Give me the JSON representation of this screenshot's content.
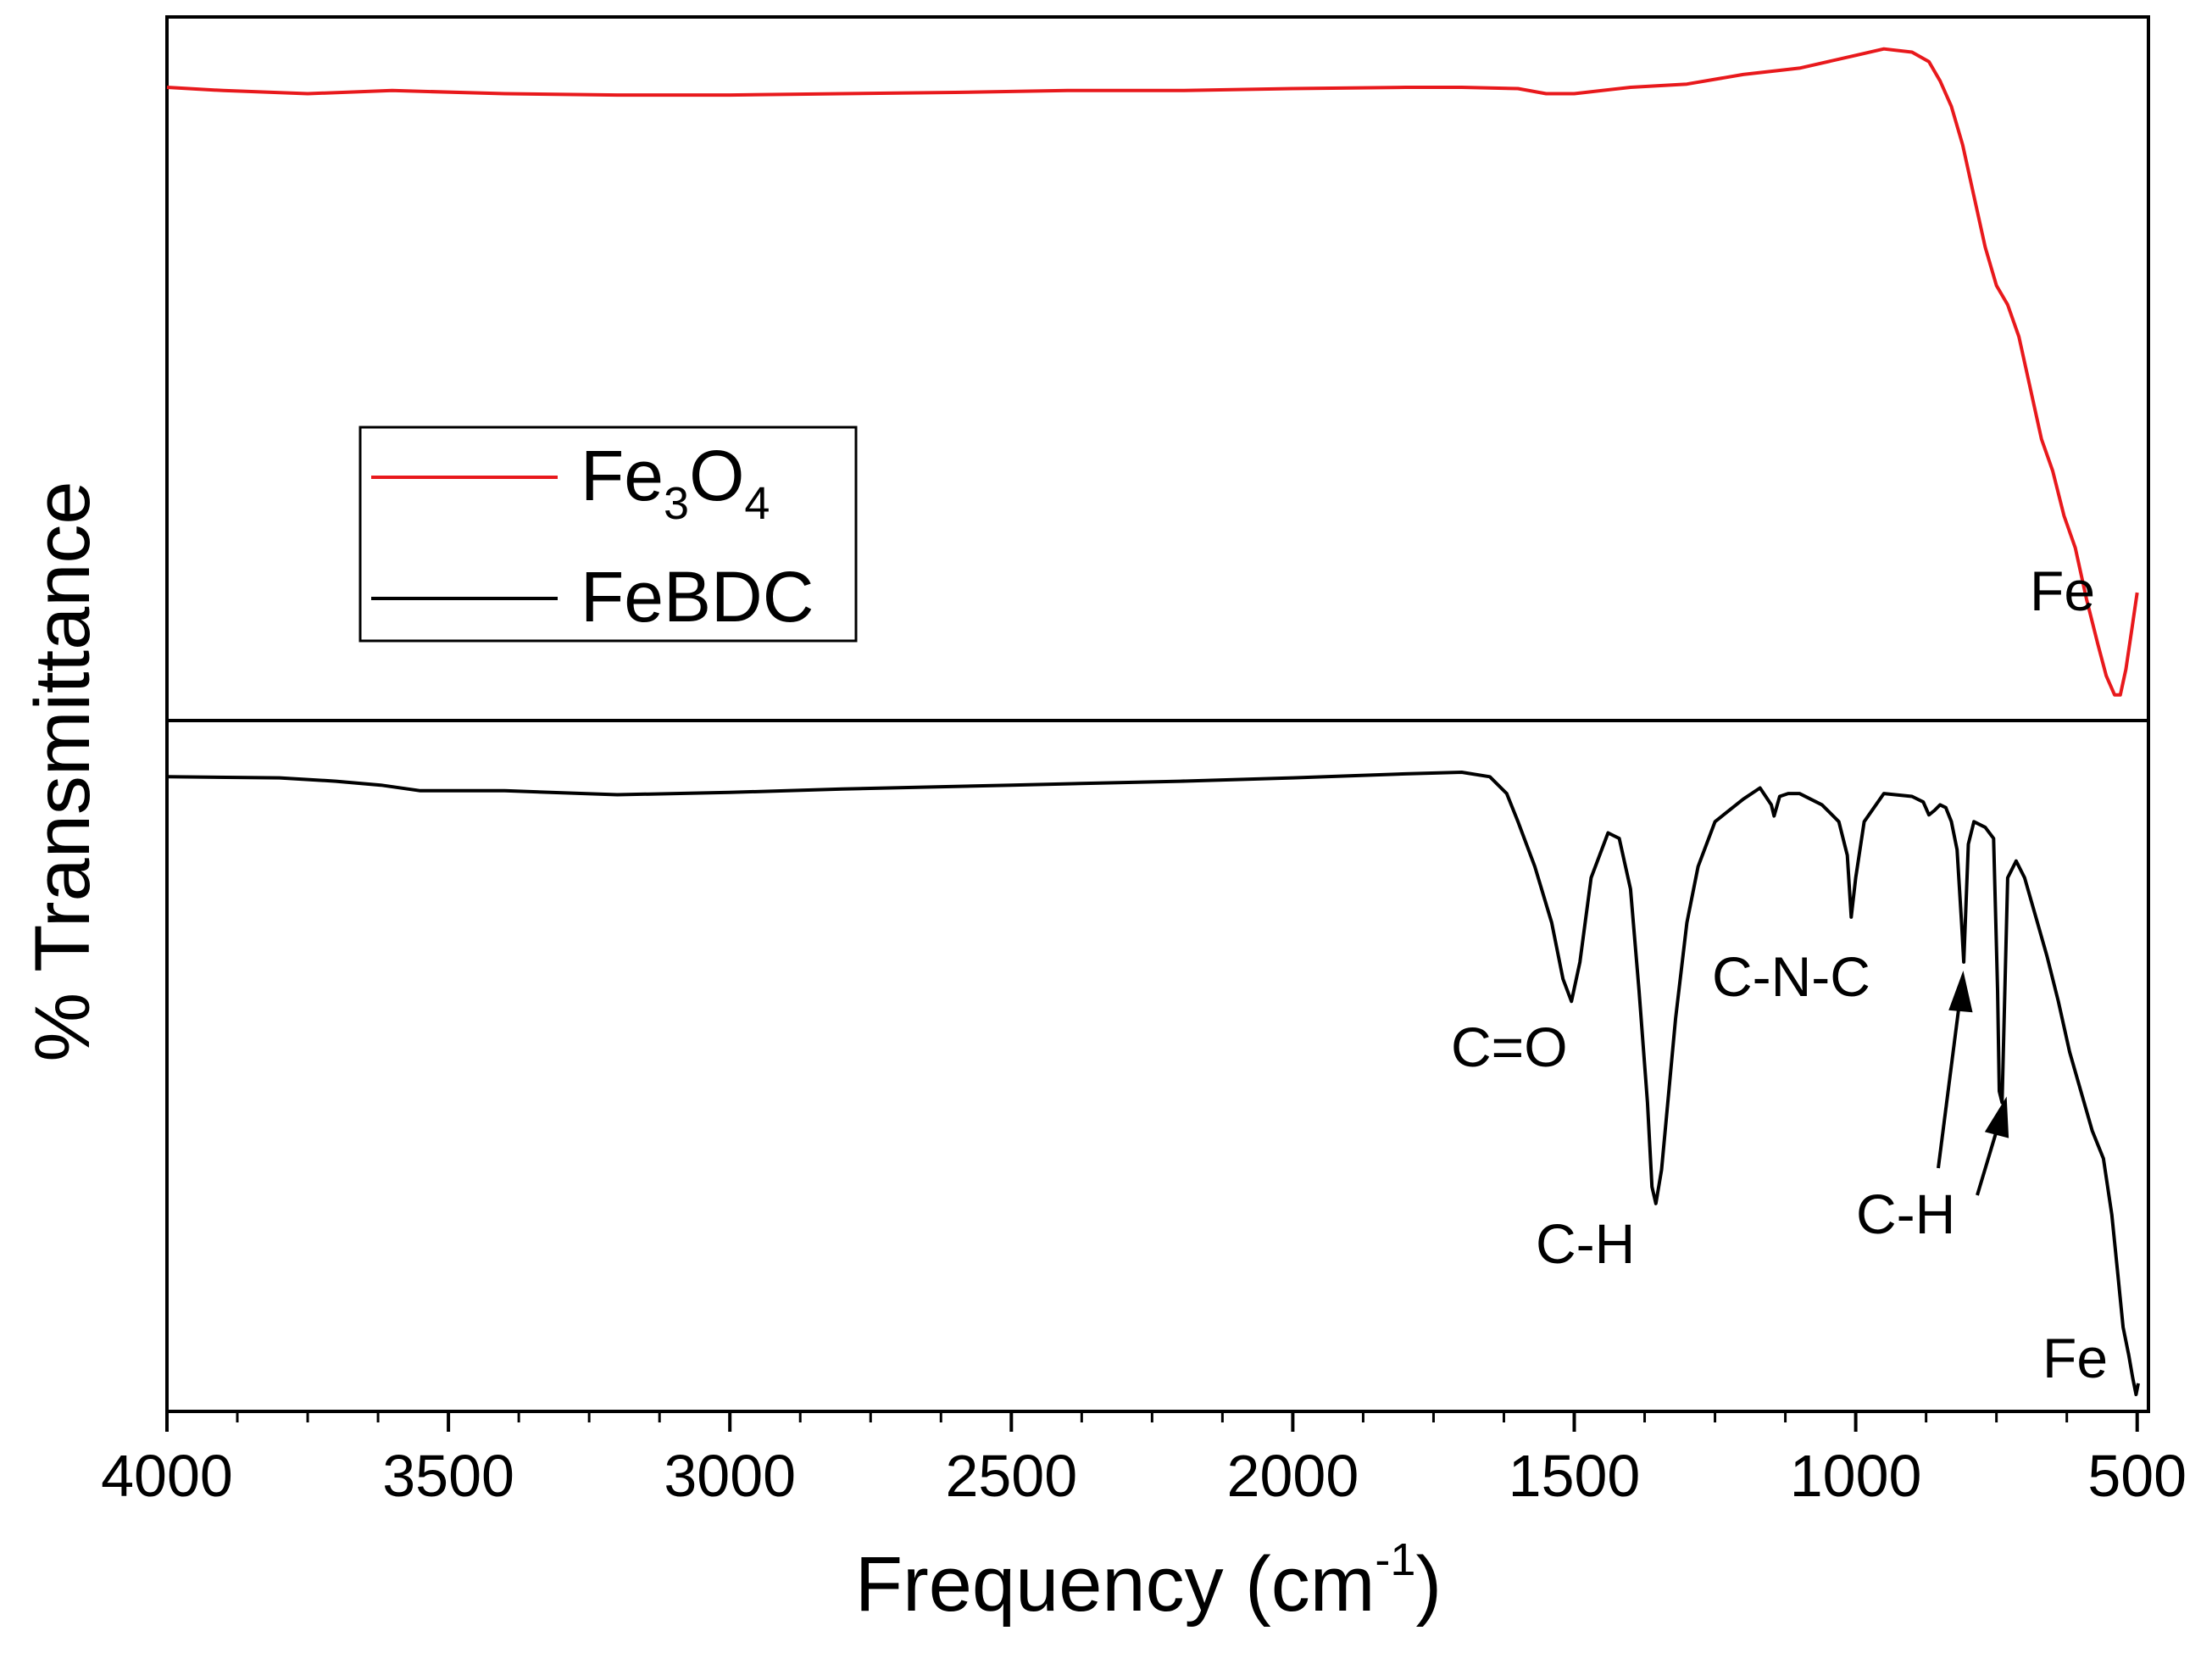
{
  "chart_data": {
    "type": "line",
    "title": "",
    "xlabel": "Frequency (cm",
    "xlabel_sup": "-1",
    "xlabel_close": ")",
    "ylabel": "% Transmittance",
    "xlim": [
      4000,
      480
    ],
    "xticks": [
      "4000",
      "3500",
      "3000",
      "2500",
      "2000",
      "1500",
      "1000",
      "500"
    ],
    "panels": [
      {
        "name": "top",
        "series": {
          "name": "Fe3O4",
          "color": "#e8191c",
          "x": [
            4000,
            3900,
            3750,
            3600,
            3400,
            3200,
            3000,
            2800,
            2600,
            2400,
            2200,
            2000,
            1800,
            1700,
            1600,
            1550,
            1500,
            1400,
            1300,
            1200,
            1100,
            1000,
            950,
            900,
            870,
            850,
            830,
            810,
            790,
            770,
            750,
            730,
            710,
            690,
            670,
            650,
            630,
            610,
            590,
            570,
            555,
            540,
            530,
            520,
            510,
            500
          ],
          "y": [
            0.97,
            0.965,
            0.96,
            0.965,
            0.96,
            0.958,
            0.958,
            0.96,
            0.962,
            0.965,
            0.965,
            0.968,
            0.97,
            0.97,
            0.968,
            0.96,
            0.96,
            0.97,
            0.975,
            0.99,
            1.0,
            1.02,
            1.03,
            1.025,
            1.01,
            0.98,
            0.94,
            0.88,
            0.8,
            0.72,
            0.66,
            0.63,
            0.58,
            0.5,
            0.42,
            0.37,
            0.3,
            0.25,
            0.17,
            0.1,
            0.05,
            0.02,
            0.02,
            0.06,
            0.12,
            0.18
          ]
        },
        "annotations": [
          {
            "text": "Fe"
          }
        ]
      },
      {
        "name": "bottom",
        "series": {
          "name": "FeBDC",
          "color": "#000000",
          "x": [
            4000,
            3800,
            3700,
            3620,
            3550,
            3400,
            3200,
            3000,
            2800,
            2500,
            2200,
            2000,
            1800,
            1700,
            1650,
            1620,
            1600,
            1570,
            1540,
            1520,
            1505,
            1490,
            1470,
            1440,
            1420,
            1400,
            1385,
            1370,
            1362,
            1355,
            1345,
            1320,
            1300,
            1280,
            1250,
            1200,
            1170,
            1150,
            1145,
            1135,
            1120,
            1100,
            1060,
            1030,
            1015,
            1008,
            1000,
            985,
            950,
            900,
            880,
            870,
            860,
            850,
            840,
            830,
            820,
            812,
            808,
            800,
            790,
            770,
            755,
            748,
            745,
            740,
            730,
            715,
            700,
            680,
            660,
            640,
            620,
            600,
            580,
            560,
            545,
            535,
            525,
            515,
            508,
            502,
            498
          ],
          "y": [
            0.98,
            0.978,
            0.972,
            0.965,
            0.955,
            0.955,
            0.948,
            0.952,
            0.958,
            0.965,
            0.972,
            0.978,
            0.985,
            0.988,
            0.98,
            0.95,
            0.9,
            0.82,
            0.72,
            0.62,
            0.58,
            0.65,
            0.8,
            0.88,
            0.87,
            0.78,
            0.6,
            0.4,
            0.25,
            0.22,
            0.28,
            0.55,
            0.72,
            0.82,
            0.9,
            0.94,
            0.96,
            0.93,
            0.91,
            0.945,
            0.95,
            0.95,
            0.93,
            0.9,
            0.84,
            0.73,
            0.8,
            0.9,
            0.95,
            0.945,
            0.935,
            0.912,
            0.92,
            0.93,
            0.925,
            0.9,
            0.85,
            0.72,
            0.65,
            0.86,
            0.9,
            0.89,
            0.87,
            0.6,
            0.42,
            0.4,
            0.8,
            0.83,
            0.8,
            0.73,
            0.66,
            0.58,
            0.49,
            0.42,
            0.35,
            0.3,
            0.2,
            0.1,
            0.0,
            -0.05,
            -0.09,
            -0.12,
            -0.1
          ]
        },
        "annotations": [
          {
            "text": "C=O"
          },
          {
            "text": "C-H"
          },
          {
            "text": "C-N-C"
          },
          {
            "text": "C-H"
          },
          {
            "text": "Fe"
          }
        ]
      }
    ],
    "legend": {
      "position": "upper-left",
      "entries": [
        {
          "label": "Fe",
          "sub1": "3",
          "mid": "O",
          "sub2": "4",
          "color": "#e8191c"
        },
        {
          "label": "FeBDC",
          "color": "#000000"
        }
      ]
    }
  }
}
